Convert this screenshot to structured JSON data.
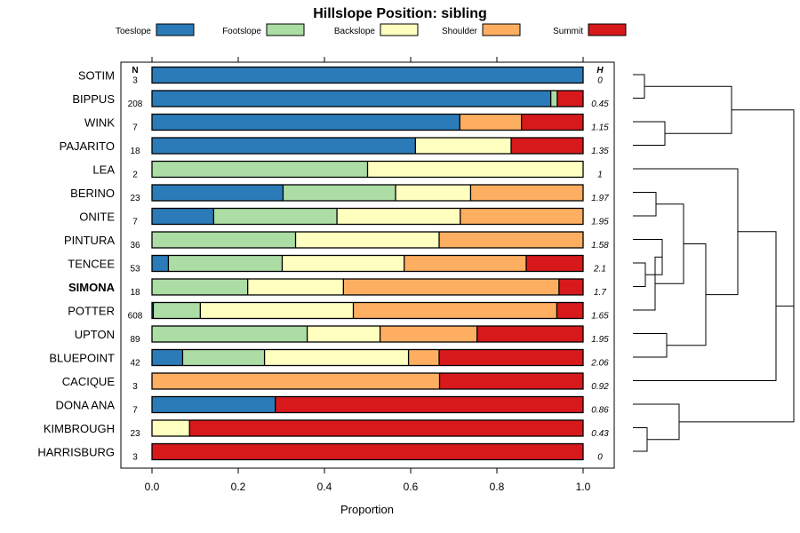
{
  "chart_data": {
    "type": "bar",
    "orientation": "horizontal-stacked",
    "title": "Hillslope Position: sibling",
    "xlabel": "Proportion",
    "xlim": [
      0,
      1
    ],
    "xticks": [
      "0.0",
      "0.2",
      "0.4",
      "0.6",
      "0.8",
      "1.0"
    ],
    "n_header": "N",
    "h_header": "H",
    "legend": [
      {
        "name": "Toeslope",
        "color": "#2B7BB9"
      },
      {
        "name": "Footslope",
        "color": "#ABDDA4"
      },
      {
        "name": "Backslope",
        "color": "#FFFFBF"
      },
      {
        "name": "Shoulder",
        "color": "#FDAE61"
      },
      {
        "name": "Summit",
        "color": "#D7191C"
      }
    ],
    "categories": [
      {
        "name": "SOTIM",
        "n": "3",
        "h": "0",
        "values": [
          1.0,
          0,
          0,
          0,
          0
        ]
      },
      {
        "name": "BIPPUS",
        "n": "208",
        "h": "0.45",
        "values": [
          0.925,
          0.015,
          0,
          0,
          0.06
        ]
      },
      {
        "name": "WINK",
        "n": "7",
        "h": "1.15",
        "values": [
          0.714,
          0,
          0,
          0.143,
          0.143
        ]
      },
      {
        "name": "PAJARITO",
        "n": "18",
        "h": "1.35",
        "values": [
          0.611,
          0,
          0.222,
          0,
          0.167
        ]
      },
      {
        "name": "LEA",
        "n": "2",
        "h": "1",
        "values": [
          0,
          0.5,
          0.5,
          0,
          0
        ]
      },
      {
        "name": "BERINO",
        "n": "23",
        "h": "1.97",
        "values": [
          0.304,
          0.261,
          0.174,
          0.261,
          0
        ]
      },
      {
        "name": "ONITE",
        "n": "7",
        "h": "1.95",
        "values": [
          0.143,
          0.286,
          0.286,
          0.285,
          0
        ]
      },
      {
        "name": "PINTURA",
        "n": "36",
        "h": "1.58",
        "values": [
          0,
          0.333,
          0.333,
          0.334,
          0
        ]
      },
      {
        "name": "TENCEE",
        "n": "53",
        "h": "2.1",
        "values": [
          0.038,
          0.264,
          0.283,
          0.283,
          0.132
        ]
      },
      {
        "name": "SIMONA",
        "n": "18",
        "h": "1.7",
        "values": [
          0,
          0.222,
          0.222,
          0.5,
          0.056
        ],
        "bold": true
      },
      {
        "name": "POTTER",
        "n": "608",
        "h": "1.65",
        "values": [
          0.003,
          0.109,
          0.355,
          0.472,
          0.061
        ]
      },
      {
        "name": "UPTON",
        "n": "89",
        "h": "1.95",
        "values": [
          0,
          0.36,
          0.169,
          0.225,
          0.246
        ]
      },
      {
        "name": "BLUEPOINT",
        "n": "42",
        "h": "2.06",
        "values": [
          0.071,
          0.19,
          0.334,
          0.071,
          0.334
        ]
      },
      {
        "name": "CACIQUE",
        "n": "3",
        "h": "0.92",
        "values": [
          0,
          0,
          0,
          0.667,
          0.333
        ]
      },
      {
        "name": "DONA ANA",
        "n": "7",
        "h": "0.86",
        "values": [
          0.286,
          0,
          0,
          0,
          0.714
        ]
      },
      {
        "name": "KIMBROUGH",
        "n": "23",
        "h": "0.43",
        "values": [
          0,
          0,
          0.087,
          0,
          0.913
        ]
      },
      {
        "name": "HARRISBURG",
        "n": "3",
        "h": "0",
        "values": [
          0,
          0,
          0,
          0,
          1.0
        ]
      }
    ]
  }
}
